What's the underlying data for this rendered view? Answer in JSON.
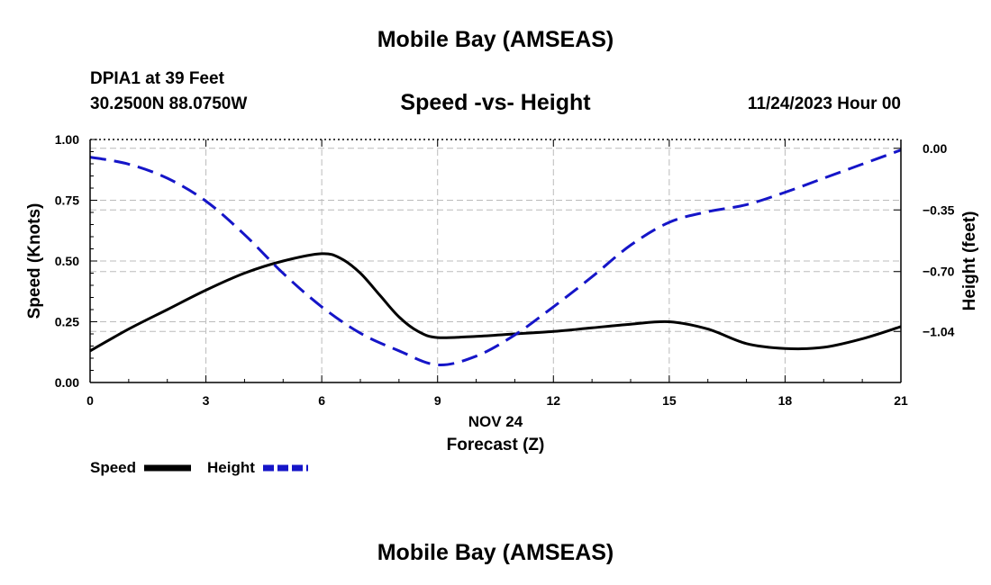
{
  "header": {
    "title": "Mobile Bay (AMSEAS)",
    "station": "DPIA1 at 39 Feet",
    "coords": "30.2500N  88.0750W",
    "subtitle": "Speed -vs- Height",
    "datetime": "11/24/2023 Hour 00"
  },
  "footer": {
    "title": "Mobile Bay (AMSEAS)"
  },
  "colors": {
    "speed": "#000000",
    "height": "#1515c8",
    "grid": "#bbbbbb"
  },
  "chart_data": {
    "type": "line",
    "title": "Speed -vs- Height",
    "xlabel_date": "NOV 24",
    "xlabel": "Forecast (Z)",
    "ylabel_left": "Speed (Knots)",
    "ylabel_right": "Height (feet)",
    "xlim": [
      0,
      21
    ],
    "ylim_left": [
      0,
      1.0
    ],
    "ylim_right": [
      -1.33,
      0.05
    ],
    "x_ticks": [
      0,
      3,
      6,
      9,
      12,
      15,
      18,
      21
    ],
    "x_tick_labels": [
      "0",
      "3",
      "6",
      "9",
      "12",
      "15",
      "18",
      "21"
    ],
    "y_left_ticks": [
      0,
      0.25,
      0.5,
      0.75,
      1.0
    ],
    "y_left_tick_labels": [
      "0.00",
      "0.25",
      "0.50",
      "0.75",
      "1.00"
    ],
    "y_right_ticks": [
      0.0,
      -0.35,
      -0.7,
      -1.04
    ],
    "y_right_tick_labels": [
      "0.00",
      "−0.35",
      "−0.70",
      "−1.04"
    ],
    "grid": true,
    "series": [
      {
        "name": "Speed",
        "axis": "left",
        "style": "solid",
        "x": [
          0,
          1,
          2,
          3,
          4,
          5,
          6,
          6.5,
          7,
          7.5,
          8,
          8.5,
          9,
          10,
          11,
          12,
          13,
          14,
          15,
          16,
          17,
          18,
          19,
          20,
          21
        ],
        "values": [
          0.13,
          0.22,
          0.3,
          0.38,
          0.45,
          0.5,
          0.53,
          0.51,
          0.45,
          0.36,
          0.27,
          0.21,
          0.185,
          0.19,
          0.2,
          0.21,
          0.225,
          0.24,
          0.25,
          0.22,
          0.16,
          0.14,
          0.145,
          0.18,
          0.23
        ]
      },
      {
        "name": "Height",
        "axis": "right",
        "style": "dashed",
        "x": [
          0,
          1,
          2,
          3,
          4,
          5,
          6,
          7,
          8,
          9,
          10,
          11,
          12,
          13,
          14,
          15,
          16,
          17,
          18,
          19,
          20,
          21
        ],
        "values": [
          -0.05,
          -0.09,
          -0.17,
          -0.3,
          -0.49,
          -0.71,
          -0.9,
          -1.05,
          -1.15,
          -1.23,
          -1.18,
          -1.06,
          -0.9,
          -0.73,
          -0.55,
          -0.42,
          -0.36,
          -0.32,
          -0.25,
          -0.17,
          -0.09,
          -0.01
        ]
      }
    ],
    "legend": {
      "position": "bottom-left",
      "entries": [
        "Speed",
        "Height"
      ]
    }
  }
}
